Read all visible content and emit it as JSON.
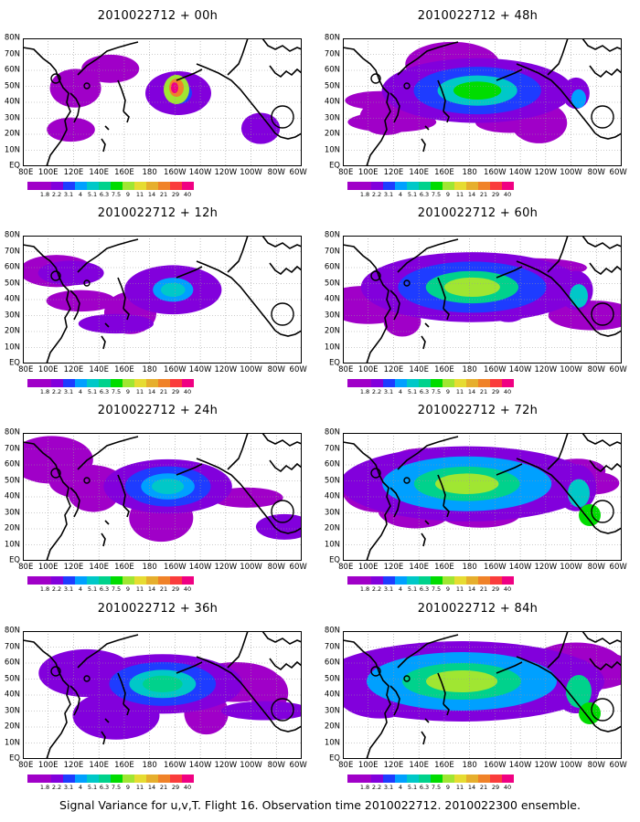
{
  "caption": "Signal Variance for u,v,T. Flight 16. Observation time 2010022712. 2010022300 ensemble.",
  "latitude_labels": [
    "80N",
    "70N",
    "60N",
    "50N",
    "40N",
    "30N",
    "20N",
    "10N",
    "EQ"
  ],
  "longitude_labels": [
    "80E",
    "100E",
    "120E",
    "140E",
    "160E",
    "180",
    "160W",
    "140W",
    "120W",
    "100W",
    "80W",
    "60W"
  ],
  "colorbar": {
    "labels": [
      "1.8",
      "2.2",
      "3.1",
      "4",
      "5.1",
      "6.3",
      "7.5",
      "9",
      "11",
      "14",
      "21",
      "29",
      "40"
    ],
    "colors": [
      "#a000c8",
      "#8200dc",
      "#1e3cff",
      "#00a0ff",
      "#00c8c8",
      "#00d28c",
      "#00dc00",
      "#a0e632",
      "#e6dc32",
      "#e6af2d",
      "#f08228",
      "#fa3c3c",
      "#f00082"
    ]
  },
  "panels": [
    {
      "title": "2010022712 + 00h",
      "lead_hours": 0
    },
    {
      "title": "2010022712 + 48h",
      "lead_hours": 48
    },
    {
      "title": "2010022712 + 12h",
      "lead_hours": 12
    },
    {
      "title": "2010022712 + 60h",
      "lead_hours": 60
    },
    {
      "title": "2010022712 + 24h",
      "lead_hours": 24
    },
    {
      "title": "2010022712 + 72h",
      "lead_hours": 72
    },
    {
      "title": "2010022712 + 36h",
      "lead_hours": 36
    },
    {
      "title": "2010022712 + 84h",
      "lead_hours": 84
    }
  ]
}
